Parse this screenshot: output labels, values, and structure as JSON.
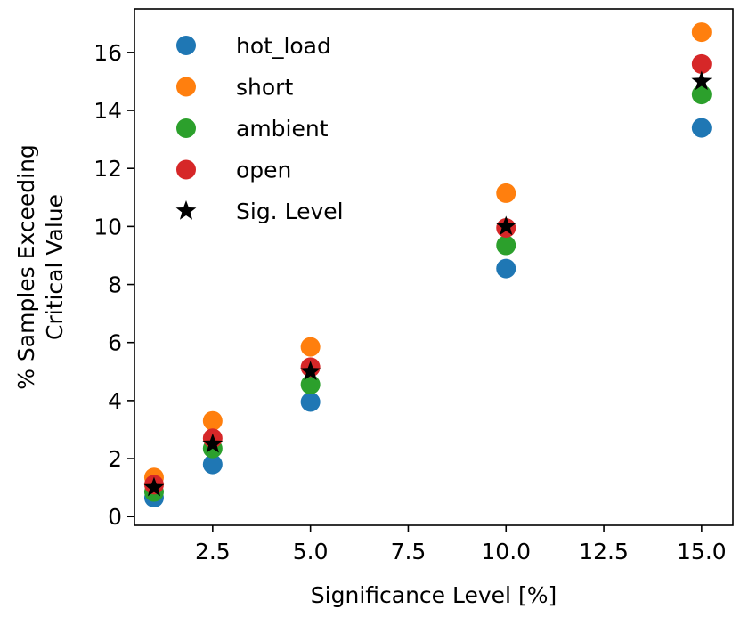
{
  "chart_data": {
    "type": "scatter",
    "xlabel": "Significance Level [%]",
    "ylabel_lines": [
      "% Samples Exceeding",
      "Critical Value"
    ],
    "xlim": [
      0.5,
      15.8
    ],
    "ylim": [
      -0.3,
      17.5
    ],
    "xticks": [
      2.5,
      5.0,
      7.5,
      10.0,
      12.5,
      15.0
    ],
    "xtick_labels": [
      "2.5",
      "5.0",
      "7.5",
      "10.0",
      "12.5",
      "15.0"
    ],
    "yticks": [
      0,
      2,
      4,
      6,
      8,
      10,
      12,
      14,
      16
    ],
    "ytick_labels": [
      "0",
      "2",
      "4",
      "6",
      "8",
      "10",
      "12",
      "14",
      "16"
    ],
    "legend_position": "upper-left",
    "x": [
      1,
      2.5,
      5,
      10,
      15
    ],
    "series": [
      {
        "name": "hot_load",
        "color": "#1f77b4",
        "marker": "circle",
        "values": [
          0.65,
          1.8,
          3.95,
          8.55,
          13.4
        ]
      },
      {
        "name": "short",
        "color": "#ff7f0e",
        "marker": "circle",
        "values": [
          1.35,
          3.3,
          5.85,
          11.15,
          16.7
        ]
      },
      {
        "name": "ambient",
        "color": "#2ca02c",
        "marker": "circle",
        "values": [
          0.85,
          2.35,
          4.55,
          9.35,
          14.55
        ]
      },
      {
        "name": "open",
        "color": "#d62728",
        "marker": "circle",
        "values": [
          1.1,
          2.7,
          5.15,
          9.95,
          15.6
        ]
      },
      {
        "name": "Sig. Level",
        "color": "#000000",
        "marker": "star",
        "values": [
          1,
          2.5,
          5,
          10,
          15
        ]
      }
    ]
  }
}
